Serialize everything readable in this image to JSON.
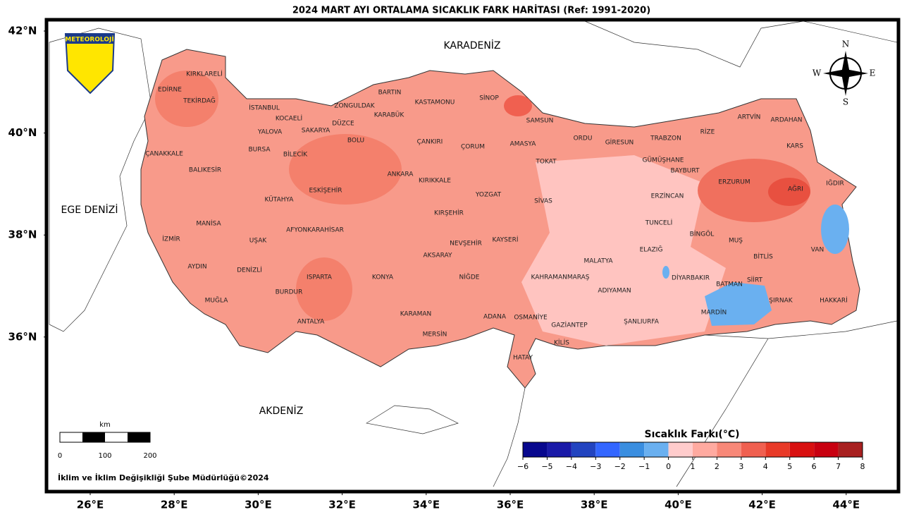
{
  "title": "2024 MART AYI ORTALAMA SICAKLIK FARK HARİTASI (Ref: 1991-2020)",
  "logo": "METEOROLOJİ",
  "compass": [
    "N",
    "S",
    "W",
    "E"
  ],
  "seas": [
    "KARADENİZ",
    "EGE DENİZİ",
    "AKDENİZ"
  ],
  "latitudes": [
    {
      "value": 42,
      "label": "42°N"
    },
    {
      "value": 40,
      "label": "40°N"
    },
    {
      "value": 38,
      "label": "38°N"
    },
    {
      "value": 36,
      "label": "36°N"
    }
  ],
  "longitudes": [
    {
      "value": 26,
      "label": "26°E"
    },
    {
      "value": 28,
      "label": "28°E"
    },
    {
      "value": 30,
      "label": "30°E"
    },
    {
      "value": 32,
      "label": "32°E"
    },
    {
      "value": 34,
      "label": "34°E"
    },
    {
      "value": 36,
      "label": "36°E"
    },
    {
      "value": 38,
      "label": "38°E"
    },
    {
      "value": 40,
      "label": "40°E"
    },
    {
      "value": 42,
      "label": "42°E"
    },
    {
      "value": 44,
      "label": "44°E"
    }
  ],
  "provinces": [
    "KIRKLARELİ",
    "EDİRNE",
    "TEKİRDAĞ",
    "İSTANBUL",
    "KOCAELİ",
    "YALOVA",
    "SAKARYA",
    "DÜZCE",
    "ZONGULDAK",
    "BARTIN",
    "KARABÜK",
    "KASTAMONU",
    "SİNOP",
    "SAMSUN",
    "ÇANAKKALE",
    "BURSA",
    "BİLECİK",
    "BOLU",
    "ÇANKIRI",
    "ÇORUM",
    "AMASYA",
    "ORDU",
    "GİRESUN",
    "TRABZON",
    "RİZE",
    "ARTVİN",
    "ARDAHAN",
    "KARS",
    "GÜMÜŞHANE",
    "BAYBURT",
    "TOKAT",
    "BALIKESİR",
    "ESKİŞEHİR",
    "ANKARA",
    "KIRIKKALE",
    "YOZGAT",
    "SİVAS",
    "ERZİNCAN",
    "ERZURUM",
    "AĞRI",
    "IĞDIR",
    "KÜTAHYA",
    "MANİSA",
    "KIRŞEHİR",
    "TUNCELİ",
    "BİNGÖL",
    "MUŞ",
    "İZMİR",
    "UŞAK",
    "AFYONKARAHİSAR",
    "NEVŞEHİR",
    "KAYSERİ",
    "ELAZIĞ",
    "MALATYA",
    "BİTLİS",
    "VAN",
    "AYDIN",
    "DENİZLİ",
    "AKSARAY",
    "ISPARTA",
    "KONYA",
    "NİĞDE",
    "KAHRAMANMARAŞ",
    "ADIYAMAN",
    "DİYARBAKIR",
    "BATMAN",
    "SİİRT",
    "MUĞLA",
    "BURDUR",
    "ŞIRNAK",
    "HAKKARİ",
    "MARDİN",
    "KARAMAN",
    "ADANA",
    "OSMANİYE",
    "GAZİANTEP",
    "ŞANLIURFA",
    "ANTALYA",
    "MERSİN",
    "KİLİS",
    "HATAY"
  ],
  "colorbar": {
    "title": "Sıcaklık Farkı(°C)",
    "ticks": [
      {
        "value": -6,
        "label": "−6"
      },
      {
        "value": -5,
        "label": "−5"
      },
      {
        "value": -4,
        "label": "−4"
      },
      {
        "value": -3,
        "label": "−3"
      },
      {
        "value": -2,
        "label": "−2"
      },
      {
        "value": -1,
        "label": "−1"
      },
      0,
      1,
      2,
      3,
      4,
      5,
      6,
      7,
      8
    ],
    "colors": [
      "#08088e",
      "#1a1aa8",
      "#2244c0",
      "#3366ff",
      "#3a8ee0",
      "#6ab0f0",
      "#ffcccc",
      "#ffaaa0",
      "#f88878",
      "#f06050",
      "#e83a28",
      "#d81010",
      "#c80010",
      "#a82020"
    ]
  },
  "scale_bar": {
    "unit": "km",
    "labels": [
      "0",
      "100",
      "200"
    ]
  },
  "credit": "İklim ve İklim Değişikliği Şube Müdürlüğü©2024"
}
